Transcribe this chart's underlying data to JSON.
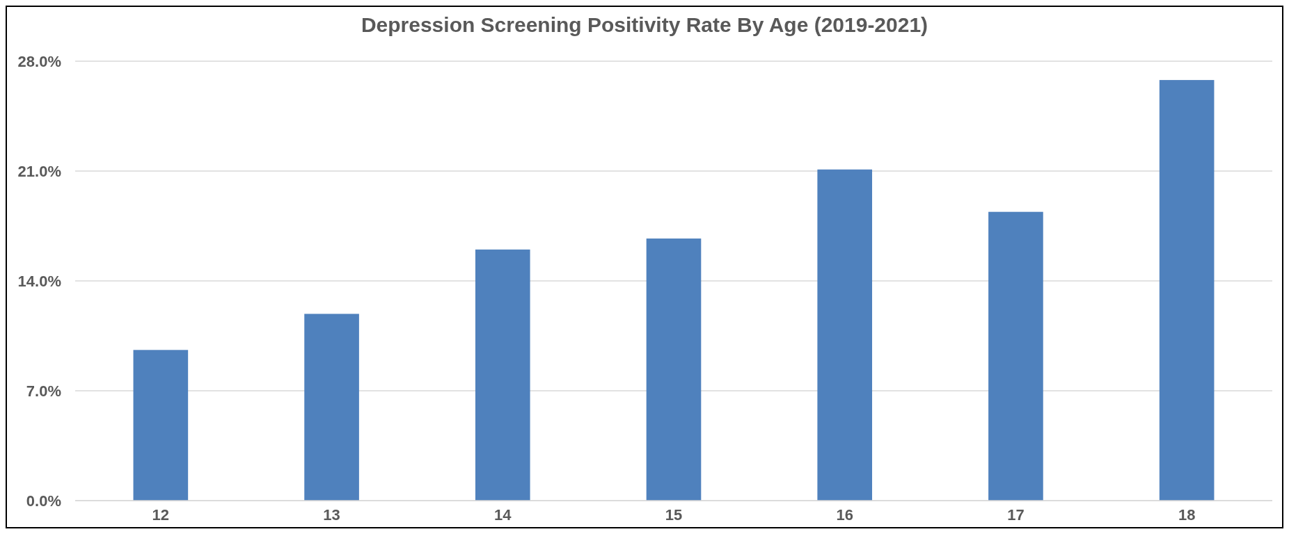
{
  "chart_data": {
    "type": "bar",
    "title": "Depression Screening Positivity Rate By Age (2019-2021)",
    "categories": [
      "12",
      "13",
      "14",
      "15",
      "16",
      "17",
      "18"
    ],
    "values": [
      9.6,
      11.9,
      16.0,
      16.7,
      21.1,
      18.4,
      26.8
    ],
    "color": "#4f81bd",
    "ylim": [
      0,
      28
    ],
    "yticks": [
      {
        "value": 0,
        "label": "0.0%"
      },
      {
        "value": 7,
        "label": "7.0%"
      },
      {
        "value": 14,
        "label": "14.0%"
      },
      {
        "value": 21,
        "label": "21.0%"
      },
      {
        "value": 28,
        "label": "28.0%"
      }
    ],
    "grid": "y"
  }
}
